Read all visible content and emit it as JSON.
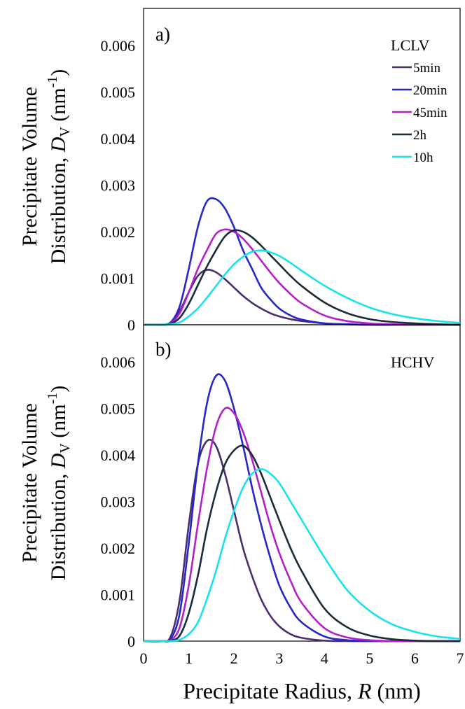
{
  "figure": {
    "shared_xlabel_prefix": "Precipitate Radius, ",
    "shared_xlabel_var": "R",
    "shared_xlabel_suffix": " (nm)",
    "ylabel_line1": "Precipitate Volume",
    "ylabel_line2_prefix": "Distribution, ",
    "ylabel_line2_var": "D",
    "ylabel_line2_sub": "V",
    "ylabel_line2_unit": " (nm",
    "ylabel_line2_sup": "-1",
    "ylabel_line2_close": ")"
  },
  "legend": {
    "items": [
      {
        "label": "5min",
        "color": "#4a2d6e"
      },
      {
        "label": "20min",
        "color": "#2626c9"
      },
      {
        "label": "45min",
        "color": "#b51fc9"
      },
      {
        "label": "2h",
        "color": "#1a2b3a"
      },
      {
        "label": "10h",
        "color": "#19e3ea"
      }
    ]
  },
  "chart_data": [
    {
      "type": "line",
      "panel_label": "a)",
      "annotation": "LCLV",
      "xlim": [
        0,
        7
      ],
      "ylim": [
        0,
        0.0068
      ],
      "xticks": [
        "0",
        "1",
        "2",
        "3",
        "4",
        "5",
        "6",
        "7"
      ],
      "yticks": [
        "0",
        "0.001",
        "0.002",
        "0.003",
        "0.004",
        "0.005",
        "0.006"
      ],
      "x": [
        0,
        0.4,
        0.6,
        0.8,
        1.0,
        1.2,
        1.4,
        1.6,
        1.8,
        2.0,
        2.2,
        2.4,
        2.6,
        2.8,
        3.0,
        3.25,
        3.5,
        4.0,
        4.5,
        5.0,
        5.5,
        6.0,
        6.5,
        7.0
      ],
      "series": [
        {
          "name": "5min",
          "color": "#4a2d6e",
          "values": [
            0,
            0,
            5e-05,
            0.0003,
            0.0007,
            0.00105,
            0.00118,
            0.00113,
            0.00098,
            0.0008,
            0.00062,
            0.00047,
            0.00035,
            0.00025,
            0.00018,
            0.00012,
            8e-05,
            3e-05,
            1e-05,
            0,
            0,
            0,
            0,
            0
          ]
        },
        {
          "name": "20min",
          "color": "#2626c9",
          "values": [
            0,
            0,
            5e-05,
            0.0004,
            0.0012,
            0.0021,
            0.00265,
            0.0027,
            0.0025,
            0.0021,
            0.0016,
            0.0012,
            0.0008,
            0.00055,
            0.00035,
            0.0002,
            0.00011,
            3e-05,
            1e-05,
            0,
            0,
            0,
            0,
            0
          ]
        },
        {
          "name": "45min",
          "color": "#b51fc9",
          "values": [
            0,
            0,
            3e-05,
            0.00025,
            0.0007,
            0.0012,
            0.0016,
            0.00195,
            0.00205,
            0.002,
            0.00185,
            0.00163,
            0.00138,
            0.00113,
            0.0009,
            0.00066,
            0.00046,
            0.0002,
            8e-05,
            3e-05,
            1e-05,
            0,
            0,
            0
          ]
        },
        {
          "name": "2h",
          "color": "#1a2b3a",
          "values": [
            0,
            0,
            2e-05,
            0.00015,
            0.00045,
            0.00085,
            0.00125,
            0.0016,
            0.0019,
            0.00203,
            0.002,
            0.00188,
            0.0017,
            0.0015,
            0.0013,
            0.00105,
            0.00083,
            0.00048,
            0.00025,
            0.00012,
            6e-05,
            3e-05,
            1e-05,
            0
          ]
        },
        {
          "name": "10h",
          "color": "#19e3ea",
          "values": [
            0,
            0,
            1e-05,
            5e-05,
            0.00018,
            0.00035,
            0.00058,
            0.00083,
            0.00108,
            0.0013,
            0.00146,
            0.00157,
            0.0016,
            0.00156,
            0.00148,
            0.00133,
            0.00116,
            0.00084,
            0.00058,
            0.00037,
            0.00023,
            0.00014,
            8e-05,
            4e-05
          ]
        }
      ]
    },
    {
      "type": "line",
      "panel_label": "b)",
      "annotation": "HCHV",
      "xlim": [
        0,
        7
      ],
      "ylim": [
        0,
        0.0068
      ],
      "xticks": [
        "0",
        "1",
        "2",
        "3",
        "4",
        "5",
        "6",
        "7"
      ],
      "yticks": [
        "0",
        "0.001",
        "0.002",
        "0.003",
        "0.004",
        "0.005",
        "0.006"
      ],
      "xlabel": "",
      "x": [
        0,
        0.4,
        0.6,
        0.8,
        1.0,
        1.2,
        1.4,
        1.6,
        1.8,
        2.0,
        2.2,
        2.4,
        2.6,
        2.8,
        3.0,
        3.25,
        3.5,
        4.0,
        4.5,
        5.0,
        5.5,
        6.0,
        6.5,
        7.0
      ],
      "series": [
        {
          "name": "5min",
          "color": "#4a2d6e",
          "values": [
            0,
            0,
            0.0001,
            0.0009,
            0.0025,
            0.0038,
            0.0043,
            0.0042,
            0.0036,
            0.0028,
            0.002,
            0.0014,
            0.0009,
            0.00055,
            0.00032,
            0.00015,
            7e-05,
            1e-05,
            0,
            0,
            0,
            0,
            0,
            0
          ]
        },
        {
          "name": "20min",
          "color": "#2626c9",
          "values": [
            0,
            0,
            5e-05,
            0.0006,
            0.0021,
            0.0038,
            0.0051,
            0.0057,
            0.0056,
            0.005,
            0.0042,
            0.0033,
            0.0025,
            0.0018,
            0.0012,
            0.00072,
            0.0004,
            0.0001,
            2e-05,
            0,
            0,
            0,
            0,
            0
          ]
        },
        {
          "name": "45min",
          "color": "#b51fc9",
          "values": [
            0,
            0,
            2e-05,
            0.0003,
            0.0012,
            0.0025,
            0.0037,
            0.0046,
            0.005,
            0.0049,
            0.0045,
            0.0039,
            0.0032,
            0.0025,
            0.0019,
            0.0013,
            0.00082,
            0.00028,
            8e-05,
            2e-05,
            0,
            0,
            0,
            0
          ]
        },
        {
          "name": "2h",
          "color": "#1a2b3a",
          "values": [
            0,
            0,
            1e-05,
            0.00012,
            0.0006,
            0.0014,
            0.0024,
            0.0032,
            0.0038,
            0.0041,
            0.0042,
            0.004,
            0.0036,
            0.0031,
            0.0026,
            0.002,
            0.0015,
            0.0007,
            0.0003,
            0.00012,
            4e-05,
            1e-05,
            0,
            0
          ]
        },
        {
          "name": "10h",
          "color": "#19e3ea",
          "values": [
            0,
            0,
            0,
            3e-05,
            0.00015,
            0.0004,
            0.0009,
            0.0015,
            0.0022,
            0.0028,
            0.0033,
            0.0036,
            0.0037,
            0.0036,
            0.0034,
            0.003,
            0.0026,
            0.0018,
            0.0011,
            0.00065,
            0.00036,
            0.0002,
            0.0001,
            5e-05
          ]
        }
      ]
    }
  ]
}
